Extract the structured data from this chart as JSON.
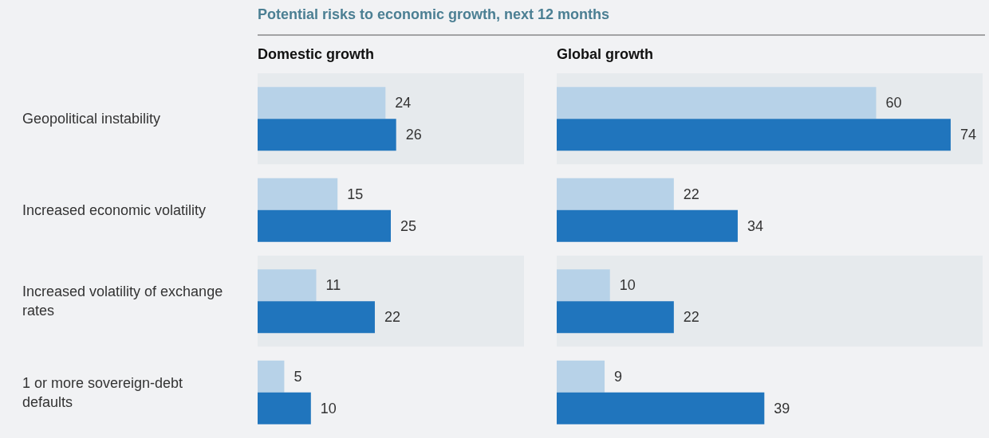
{
  "chart_data": [
    {
      "type": "bar",
      "orientation": "horizontal",
      "title": "Potential risks to economic growth, next 12 months",
      "subtitle": "Domestic growth",
      "categories": [
        "Geopolitical instability",
        "Increased economic volatility",
        "Increased volatility of exchange rates",
        "1 or more sovereign-debt defaults"
      ],
      "series": [
        {
          "color": "#b7d2e8",
          "values": [
            24,
            15,
            11,
            5
          ]
        },
        {
          "color": "#2075bd",
          "values": [
            26,
            25,
            22,
            10
          ]
        }
      ],
      "xlim": [
        0,
        50
      ],
      "data_labels": true,
      "tick_labels": "y"
    },
    {
      "type": "bar",
      "orientation": "horizontal",
      "subtitle": "Global growth",
      "categories": [
        "Geopolitical instability",
        "Increased economic volatility",
        "Increased volatility of exchange rates",
        "1 or more sovereign-debt defaults"
      ],
      "series": [
        {
          "color": "#b7d2e8",
          "values": [
            60,
            22,
            10,
            9
          ]
        },
        {
          "color": "#2075bd",
          "values": [
            74,
            34,
            22,
            39
          ]
        }
      ],
      "xlim": [
        0,
        80
      ],
      "data_labels": true,
      "tick_labels": false
    }
  ]
}
